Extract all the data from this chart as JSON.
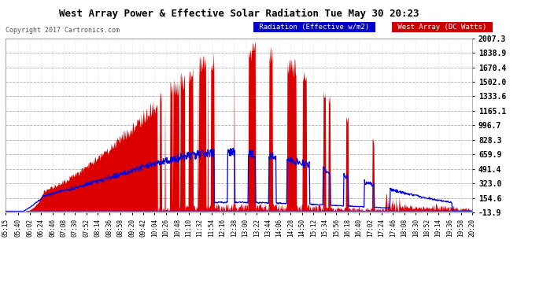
{
  "title": "West Array Power & Effective Solar Radiation Tue May 30 20:23",
  "copyright": "Copyright 2017 Cartronics.com",
  "legend_radiation": "Radiation (Effective w/m2)",
  "legend_west": "West Array (DC Watts)",
  "legend_radiation_bg": "#0000cc",
  "legend_west_bg": "#cc0000",
  "yticks": [
    2007.3,
    1838.9,
    1670.4,
    1502.0,
    1333.6,
    1165.1,
    996.7,
    828.3,
    659.9,
    491.4,
    323.0,
    154.6,
    -13.9
  ],
  "ymin": -13.9,
  "ymax": 2007.3,
  "bg_color": "#ffffff",
  "plot_bg_color": "#ffffff",
  "grid_color": "#aaaaaa",
  "red_fill_color": "#dd0000",
  "blue_line_color": "#0000dd",
  "title_color": "#000000",
  "tick_color": "#000000",
  "xtick_labels": [
    "05:15",
    "05:40",
    "06:02",
    "06:24",
    "06:46",
    "07:08",
    "07:30",
    "07:52",
    "08:14",
    "08:36",
    "08:58",
    "09:20",
    "09:42",
    "10:04",
    "10:26",
    "10:48",
    "11:10",
    "11:32",
    "11:54",
    "12:16",
    "12:38",
    "13:00",
    "13:22",
    "13:44",
    "14:06",
    "14:28",
    "14:50",
    "15:12",
    "15:34",
    "15:56",
    "16:18",
    "16:40",
    "17:02",
    "17:24",
    "17:46",
    "18:08",
    "18:30",
    "18:52",
    "19:14",
    "19:36",
    "19:58",
    "20:20"
  ]
}
